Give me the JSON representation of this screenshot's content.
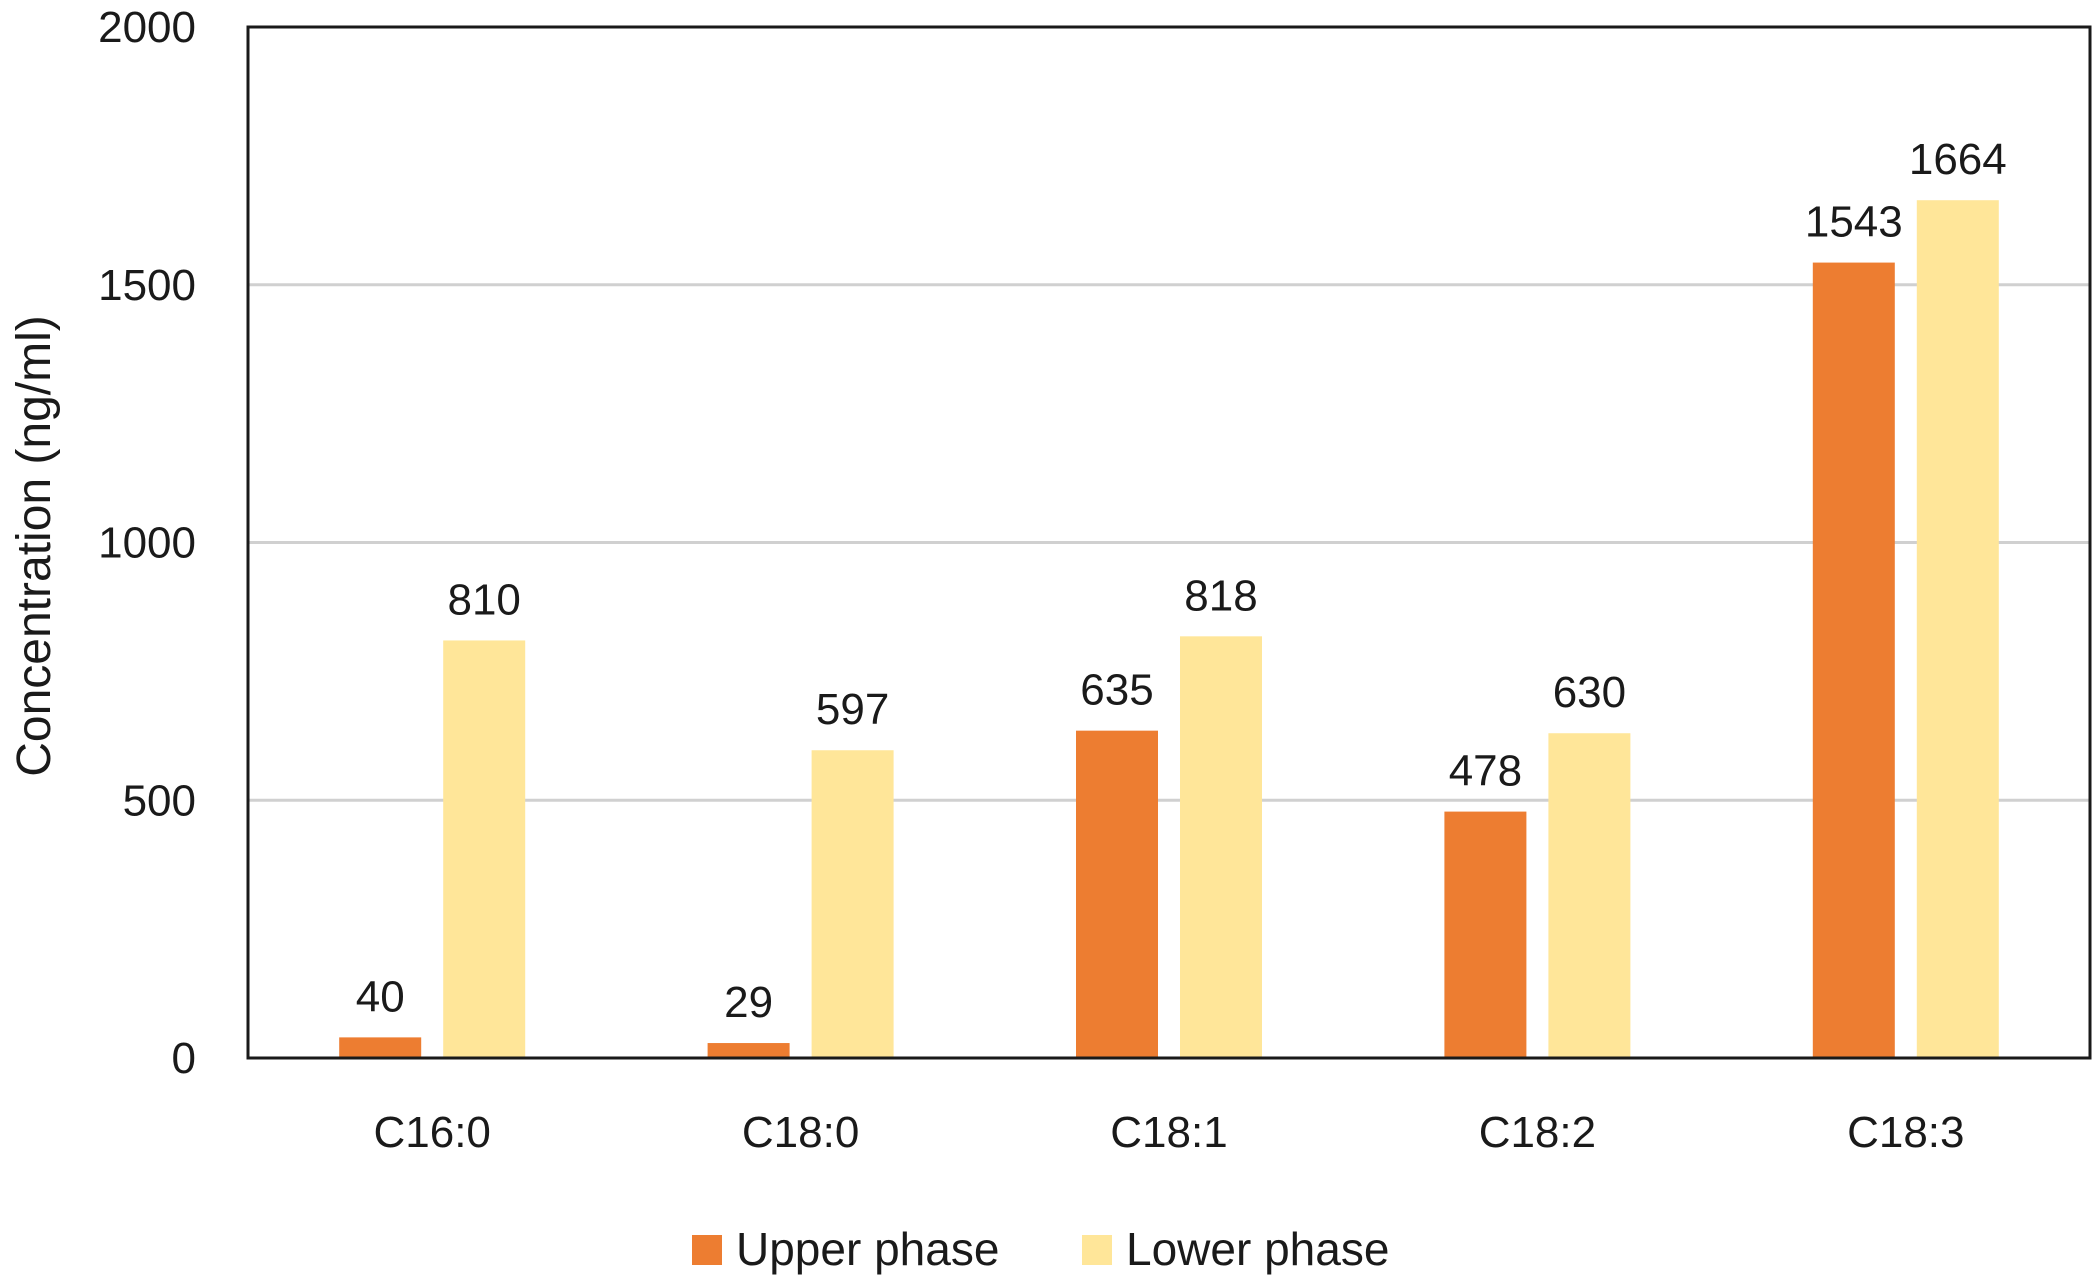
{
  "chart_data": {
    "type": "bar",
    "title": "",
    "xlabel": "",
    "ylabel": "Concentration (ng/ml)",
    "ylim": [
      0,
      2000
    ],
    "yticks": [
      0,
      500,
      1000,
      1500,
      2000
    ],
    "grid": true,
    "legend_position": "bottom",
    "categories": [
      "C16:0",
      "C18:0",
      "C18:1",
      "C18:2",
      "C18:3"
    ],
    "series": [
      {
        "name": "Upper phase",
        "color": "#ED7D31",
        "values": [
          40,
          29,
          635,
          478,
          1543
        ]
      },
      {
        "name": "Lower phase",
        "color": "#FFE699",
        "values": [
          810,
          597,
          818,
          630,
          1664
        ]
      }
    ]
  }
}
